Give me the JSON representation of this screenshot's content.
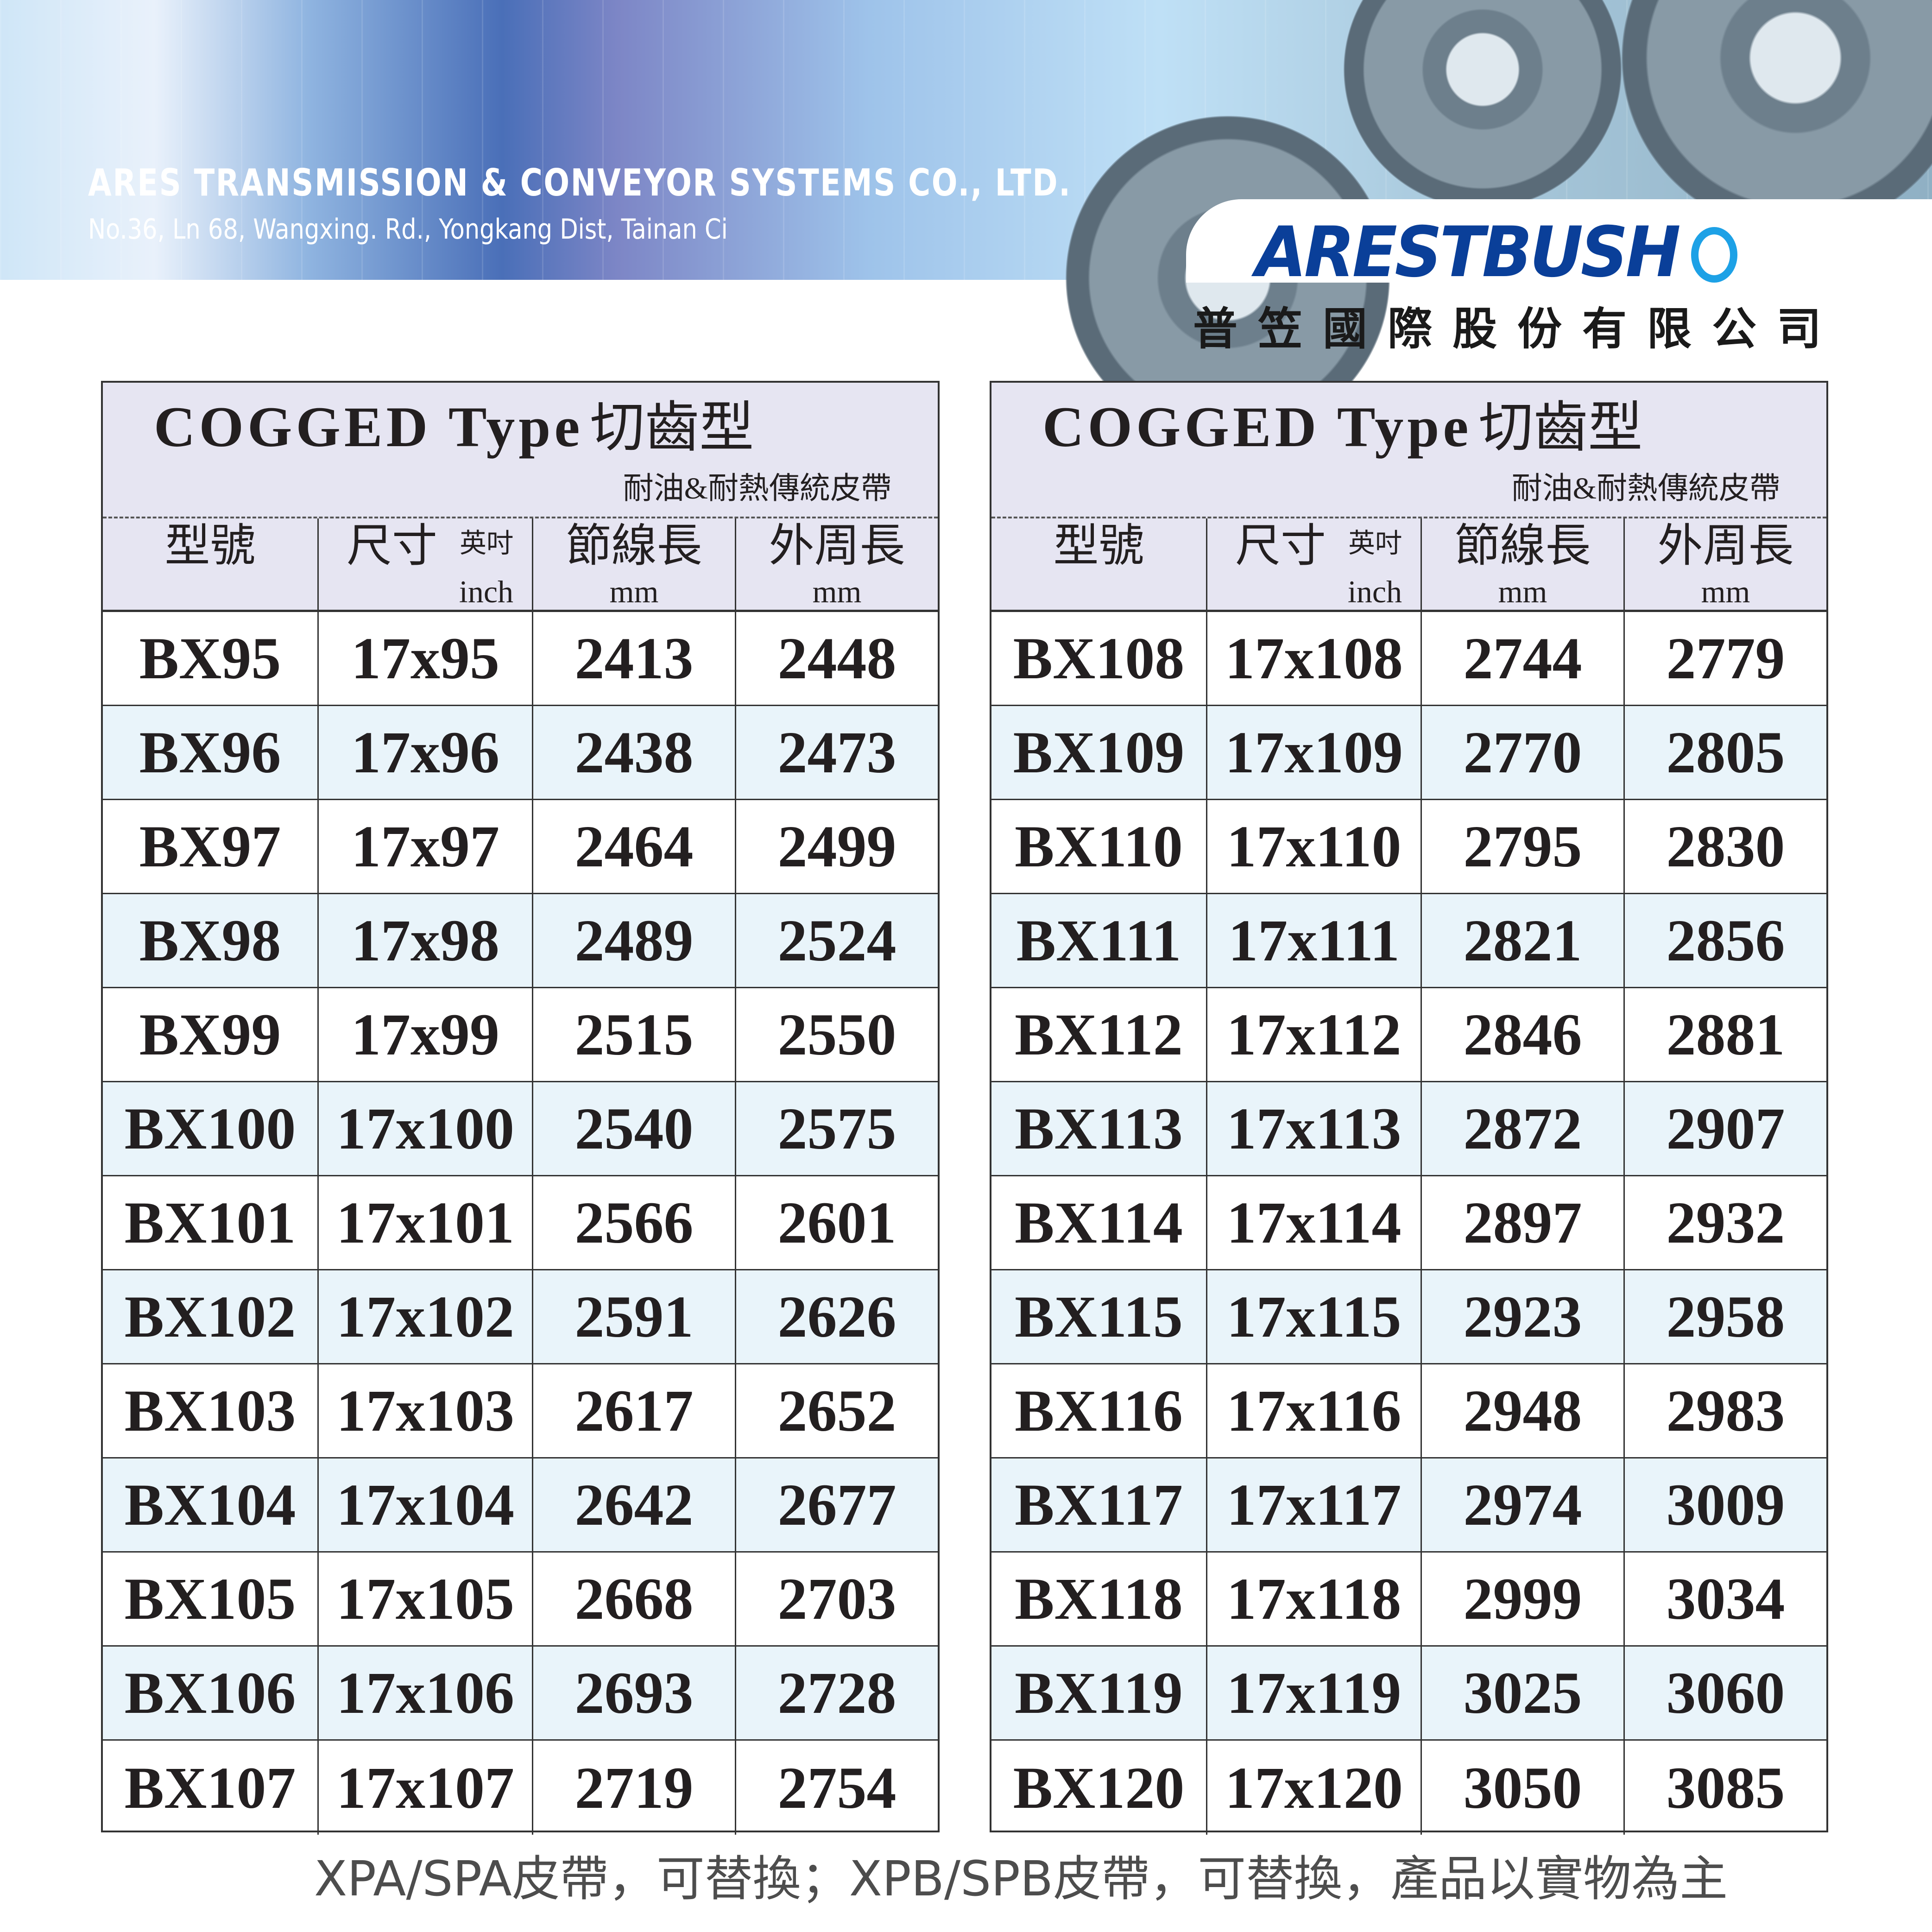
{
  "header": {
    "company_en": "ARES TRANSMISSION & CONVEYOR SYSTEMS CO., LTD.",
    "address": "No.36, Ln 68, Wangxing. Rd., Yongkang Dist, Tainan Ci",
    "logo_text": "ARESTBUSH",
    "company_zh": "普笠國際股份有限公司",
    "colors": {
      "logo": "#0a3f99",
      "logo_ring": "#1da1e6"
    }
  },
  "table_title": "COGGED Type",
  "table_title_zh": "切齒型",
  "table_subtitle": "耐油&耐熱傳統皮帶",
  "columns": {
    "model": "型號",
    "size": "尺寸",
    "size_unit_zh": "英吋",
    "size_unit": "inch",
    "pitch": "節線長",
    "pitch_unit": "mm",
    "outer": "外周長",
    "outer_unit": "mm"
  },
  "left_rows": [
    [
      "BX95",
      "17x95",
      "2413",
      "2448"
    ],
    [
      "BX96",
      "17x96",
      "2438",
      "2473"
    ],
    [
      "BX97",
      "17x97",
      "2464",
      "2499"
    ],
    [
      "BX98",
      "17x98",
      "2489",
      "2524"
    ],
    [
      "BX99",
      "17x99",
      "2515",
      "2550"
    ],
    [
      "BX100",
      "17x100",
      "2540",
      "2575"
    ],
    [
      "BX101",
      "17x101",
      "2566",
      "2601"
    ],
    [
      "BX102",
      "17x102",
      "2591",
      "2626"
    ],
    [
      "BX103",
      "17x103",
      "2617",
      "2652"
    ],
    [
      "BX104",
      "17x104",
      "2642",
      "2677"
    ],
    [
      "BX105",
      "17x105",
      "2668",
      "2703"
    ],
    [
      "BX106",
      "17x106",
      "2693",
      "2728"
    ],
    [
      "BX107",
      "17x107",
      "2719",
      "2754"
    ]
  ],
  "right_rows": [
    [
      "BX108",
      "17x108",
      "2744",
      "2779"
    ],
    [
      "BX109",
      "17x109",
      "2770",
      "2805"
    ],
    [
      "BX110",
      "17x110",
      "2795",
      "2830"
    ],
    [
      "BX111",
      "17x111",
      "2821",
      "2856"
    ],
    [
      "BX112",
      "17x112",
      "2846",
      "2881"
    ],
    [
      "BX113",
      "17x113",
      "2872",
      "2907"
    ],
    [
      "BX114",
      "17x114",
      "2897",
      "2932"
    ],
    [
      "BX115",
      "17x115",
      "2923",
      "2958"
    ],
    [
      "BX116",
      "17x116",
      "2948",
      "2983"
    ],
    [
      "BX117",
      "17x117",
      "2974",
      "3009"
    ],
    [
      "BX118",
      "17x118",
      "2999",
      "3034"
    ],
    [
      "BX119",
      "17x119",
      "3025",
      "3060"
    ],
    [
      "BX120",
      "17x120",
      "3050",
      "3085"
    ]
  ],
  "footer": "XPA/SPA皮帶，可替換；XPB/SPB皮帶，可替換，產品以實物為主"
}
